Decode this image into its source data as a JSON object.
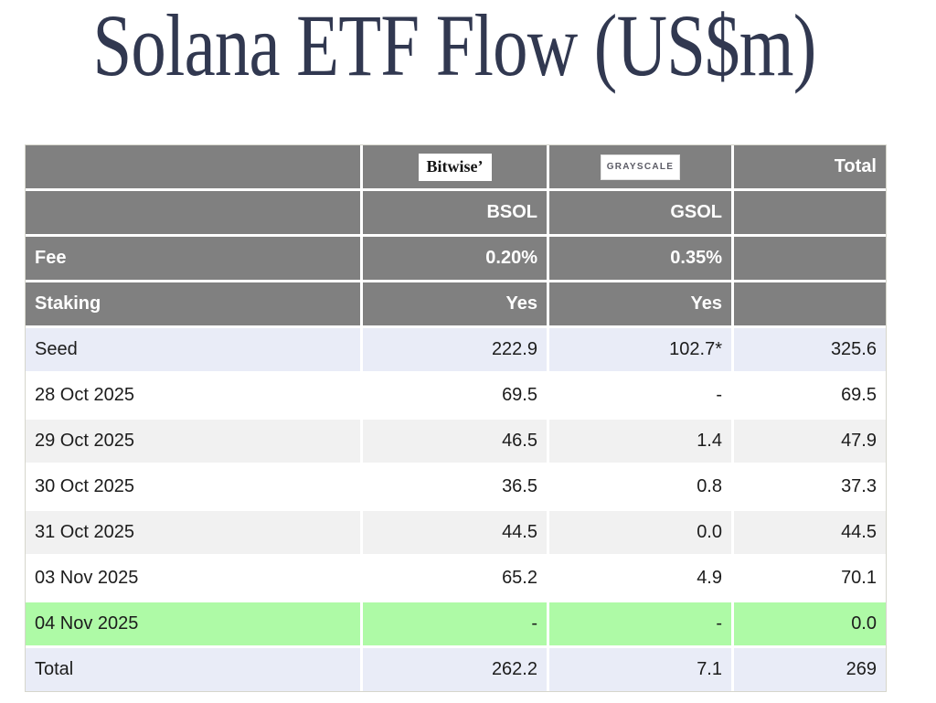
{
  "title": "Solana ETF Flow (US$m)",
  "colors": {
    "title_color": "#313850",
    "header_bg": "#808080",
    "subtotal_bg": "#e9ecf7",
    "stripe_bg": "#f1f1f1",
    "highlight_bg": "#aefaa6"
  },
  "logo_row": {
    "bitwise": "Bitwise’",
    "grayscale": "GRAYSCALE",
    "total": "Total"
  },
  "table": {
    "rows": [
      {
        "label": "",
        "c1": "BSOL",
        "c2": "GSOL",
        "c3": "",
        "style": "head"
      },
      {
        "label": "Fee",
        "c1": "0.20%",
        "c2": "0.35%",
        "c3": "",
        "style": "head"
      },
      {
        "label": "Staking",
        "c1": "Yes",
        "c2": "Yes",
        "c3": "",
        "style": "head"
      },
      {
        "label": "Seed",
        "c1": "222.9",
        "c2": "102.7*",
        "c3": "325.6",
        "style": "subtotal"
      },
      {
        "label": "28 Oct 2025",
        "c1": "69.5",
        "c2": "-",
        "c3": "69.5",
        "style": "plain"
      },
      {
        "label": "29 Oct 2025",
        "c1": "46.5",
        "c2": "1.4",
        "c3": "47.9",
        "style": "stripe"
      },
      {
        "label": "30 Oct 2025",
        "c1": "36.5",
        "c2": "0.8",
        "c3": "37.3",
        "style": "plain"
      },
      {
        "label": "31 Oct 2025",
        "c1": "44.5",
        "c2": "0.0",
        "c3": "44.5",
        "style": "stripe"
      },
      {
        "label": "03 Nov 2025",
        "c1": "65.2",
        "c2": "4.9",
        "c3": "70.1",
        "style": "plain"
      },
      {
        "label": "04 Nov 2025",
        "c1": "-",
        "c2": "-",
        "c3": "0.0",
        "style": "highlight"
      },
      {
        "label": "Total",
        "c1": "262.2",
        "c2": "7.1",
        "c3": "269",
        "style": "subtotal"
      }
    ]
  },
  "chart_data": {
    "type": "table",
    "title": "Solana ETF Flow (US$m)",
    "columns": [
      "BSOL",
      "GSOL",
      "Total"
    ],
    "issuers": {
      "BSOL": "Bitwise",
      "GSOL": "Grayscale"
    },
    "fee": {
      "BSOL": "0.20%",
      "GSOL": "0.35%"
    },
    "staking": {
      "BSOL": "Yes",
      "GSOL": "Yes"
    },
    "rows": [
      {
        "label": "Seed",
        "BSOL": 222.9,
        "GSOL": 102.7,
        "GSOL_display": "102.7*",
        "Total": 325.6
      },
      {
        "label": "28 Oct 2025",
        "BSOL": 69.5,
        "GSOL": null,
        "Total": 69.5
      },
      {
        "label": "29 Oct 2025",
        "BSOL": 46.5,
        "GSOL": 1.4,
        "Total": 47.9
      },
      {
        "label": "30 Oct 2025",
        "BSOL": 36.5,
        "GSOL": 0.8,
        "Total": 37.3
      },
      {
        "label": "31 Oct 2025",
        "BSOL": 44.5,
        "GSOL": 0.0,
        "Total": 44.5
      },
      {
        "label": "03 Nov 2025",
        "BSOL": 65.2,
        "GSOL": 4.9,
        "Total": 70.1
      },
      {
        "label": "04 Nov 2025",
        "BSOL": null,
        "GSOL": null,
        "Total": 0.0
      },
      {
        "label": "Total",
        "BSOL": 262.2,
        "GSOL": 7.1,
        "Total": 269
      }
    ],
    "highlighted_row": "04 Nov 2025"
  }
}
